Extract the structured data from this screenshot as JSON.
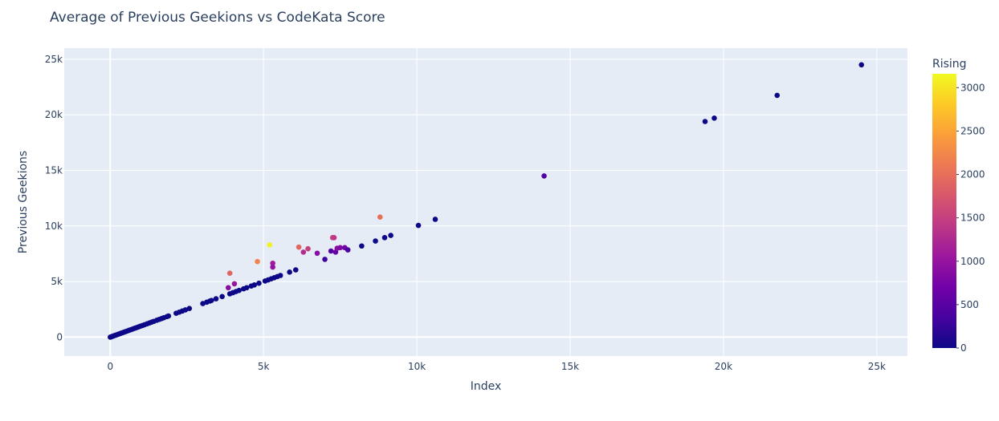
{
  "chart_data": {
    "type": "scatter",
    "title": "Average of Previous Geekions vs CodeKata Score",
    "xlabel": "Index",
    "ylabel": "Previous Geekions",
    "xlim": [
      -1500,
      26000
    ],
    "ylim": [
      -1700,
      26000
    ],
    "x_ticks": [
      0,
      5000,
      10000,
      15000,
      20000,
      25000
    ],
    "x_tick_labels": [
      "0",
      "5k",
      "10k",
      "15k",
      "20k",
      "25k"
    ],
    "y_ticks": [
      0,
      5000,
      10000,
      15000,
      20000,
      25000
    ],
    "y_tick_labels": [
      "0",
      "5k",
      "10k",
      "15k",
      "20k",
      "25k"
    ],
    "grid": true,
    "colorbar": {
      "title": "Rising",
      "range": [
        0,
        3160
      ],
      "ticks": [
        0,
        500,
        1000,
        1500,
        2000,
        2500,
        3000
      ],
      "tick_labels": [
        "0",
        "500",
        "1000",
        "1500",
        "2000",
        "2500",
        "3000"
      ],
      "colorscale": [
        "#0d0887",
        "#46039f",
        "#7201a8",
        "#9c179e",
        "#bd3786",
        "#d8576b",
        "#ed7953",
        "#fb9f3a",
        "#fdca26",
        "#f0f921"
      ]
    },
    "points": [
      {
        "x": 0,
        "y": 0,
        "c": 0
      },
      {
        "x": 30,
        "y": 30,
        "c": 0
      },
      {
        "x": 60,
        "y": 60,
        "c": 0
      },
      {
        "x": 100,
        "y": 100,
        "c": 0
      },
      {
        "x": 150,
        "y": 150,
        "c": 0
      },
      {
        "x": 200,
        "y": 200,
        "c": 0
      },
      {
        "x": 250,
        "y": 250,
        "c": 0
      },
      {
        "x": 300,
        "y": 300,
        "c": 0
      },
      {
        "x": 350,
        "y": 350,
        "c": 0
      },
      {
        "x": 400,
        "y": 400,
        "c": 0
      },
      {
        "x": 450,
        "y": 450,
        "c": 0
      },
      {
        "x": 500,
        "y": 500,
        "c": 0
      },
      {
        "x": 560,
        "y": 560,
        "c": 0
      },
      {
        "x": 620,
        "y": 620,
        "c": 0
      },
      {
        "x": 680,
        "y": 680,
        "c": 0
      },
      {
        "x": 740,
        "y": 740,
        "c": 0
      },
      {
        "x": 800,
        "y": 800,
        "c": 0
      },
      {
        "x": 860,
        "y": 860,
        "c": 0
      },
      {
        "x": 920,
        "y": 920,
        "c": 0
      },
      {
        "x": 980,
        "y": 980,
        "c": 0
      },
      {
        "x": 1050,
        "y": 1050,
        "c": 0
      },
      {
        "x": 1120,
        "y": 1120,
        "c": 0
      },
      {
        "x": 1200,
        "y": 1200,
        "c": 0
      },
      {
        "x": 1280,
        "y": 1280,
        "c": 0
      },
      {
        "x": 1350,
        "y": 1350,
        "c": 0
      },
      {
        "x": 1420,
        "y": 1420,
        "c": 0
      },
      {
        "x": 1520,
        "y": 1520,
        "c": 0
      },
      {
        "x": 1600,
        "y": 1600,
        "c": 0
      },
      {
        "x": 1680,
        "y": 1680,
        "c": 0
      },
      {
        "x": 1750,
        "y": 1750,
        "c": 0
      },
      {
        "x": 1850,
        "y": 1850,
        "c": 0
      },
      {
        "x": 1900,
        "y": 1900,
        "c": 0
      },
      {
        "x": 2150,
        "y": 2150,
        "c": 0
      },
      {
        "x": 2250,
        "y": 2250,
        "c": 0
      },
      {
        "x": 2350,
        "y": 2350,
        "c": 0
      },
      {
        "x": 2450,
        "y": 2450,
        "c": 0
      },
      {
        "x": 2580,
        "y": 2580,
        "c": 0
      },
      {
        "x": 3020,
        "y": 3020,
        "c": 0
      },
      {
        "x": 3150,
        "y": 3150,
        "c": 0
      },
      {
        "x": 3250,
        "y": 3250,
        "c": 0
      },
      {
        "x": 3300,
        "y": 3300,
        "c": 0
      },
      {
        "x": 3450,
        "y": 3450,
        "c": 0
      },
      {
        "x": 3650,
        "y": 3650,
        "c": 0
      },
      {
        "x": 3900,
        "y": 3900,
        "c": 0
      },
      {
        "x": 4000,
        "y": 4000,
        "c": 0
      },
      {
        "x": 4100,
        "y": 4100,
        "c": 0
      },
      {
        "x": 4200,
        "y": 4200,
        "c": 0
      },
      {
        "x": 4350,
        "y": 4350,
        "c": 0
      },
      {
        "x": 4450,
        "y": 4450,
        "c": 0
      },
      {
        "x": 4600,
        "y": 4600,
        "c": 0
      },
      {
        "x": 4700,
        "y": 4700,
        "c": 0
      },
      {
        "x": 4850,
        "y": 4850,
        "c": 0
      },
      {
        "x": 5050,
        "y": 5050,
        "c": 0
      },
      {
        "x": 5150,
        "y": 5150,
        "c": 0
      },
      {
        "x": 5250,
        "y": 5250,
        "c": 0
      },
      {
        "x": 5350,
        "y": 5350,
        "c": 0
      },
      {
        "x": 5450,
        "y": 5450,
        "c": 0
      },
      {
        "x": 5550,
        "y": 5550,
        "c": 0
      },
      {
        "x": 5850,
        "y": 5850,
        "c": 0
      },
      {
        "x": 6050,
        "y": 6050,
        "c": 0
      },
      {
        "x": 8200,
        "y": 8200,
        "c": 0
      },
      {
        "x": 8650,
        "y": 8650,
        "c": 0
      },
      {
        "x": 8950,
        "y": 8950,
        "c": 0
      },
      {
        "x": 9150,
        "y": 9150,
        "c": 0
      },
      {
        "x": 10050,
        "y": 10050,
        "c": 0
      },
      {
        "x": 10600,
        "y": 10600,
        "c": 0
      },
      {
        "x": 19400,
        "y": 19400,
        "c": 0
      },
      {
        "x": 19700,
        "y": 19700,
        "c": 0
      },
      {
        "x": 21750,
        "y": 21750,
        "c": 0
      },
      {
        "x": 24500,
        "y": 24500,
        "c": 0
      },
      {
        "x": 3850,
        "y": 4450,
        "c": 900
      },
      {
        "x": 4050,
        "y": 4800,
        "c": 1000
      },
      {
        "x": 3900,
        "y": 5750,
        "c": 1900
      },
      {
        "x": 4800,
        "y": 6800,
        "c": 2200
      },
      {
        "x": 5200,
        "y": 8300,
        "c": 3100
      },
      {
        "x": 5300,
        "y": 6650,
        "c": 1100
      },
      {
        "x": 5300,
        "y": 6300,
        "c": 1000
      },
      {
        "x": 6150,
        "y": 8100,
        "c": 1900
      },
      {
        "x": 6300,
        "y": 7650,
        "c": 1300
      },
      {
        "x": 6450,
        "y": 7950,
        "c": 1500
      },
      {
        "x": 6750,
        "y": 7550,
        "c": 900
      },
      {
        "x": 7000,
        "y": 7000,
        "c": 300
      },
      {
        "x": 7200,
        "y": 7750,
        "c": 500
      },
      {
        "x": 7250,
        "y": 8950,
        "c": 1600
      },
      {
        "x": 7300,
        "y": 8950,
        "c": 1400
      },
      {
        "x": 7350,
        "y": 7650,
        "c": 600
      },
      {
        "x": 7400,
        "y": 8000,
        "c": 900
      },
      {
        "x": 7500,
        "y": 8050,
        "c": 800
      },
      {
        "x": 7650,
        "y": 8050,
        "c": 700
      },
      {
        "x": 7750,
        "y": 7850,
        "c": 400
      },
      {
        "x": 8800,
        "y": 10800,
        "c": 2000
      },
      {
        "x": 14150,
        "y": 14500,
        "c": 450
      }
    ]
  }
}
